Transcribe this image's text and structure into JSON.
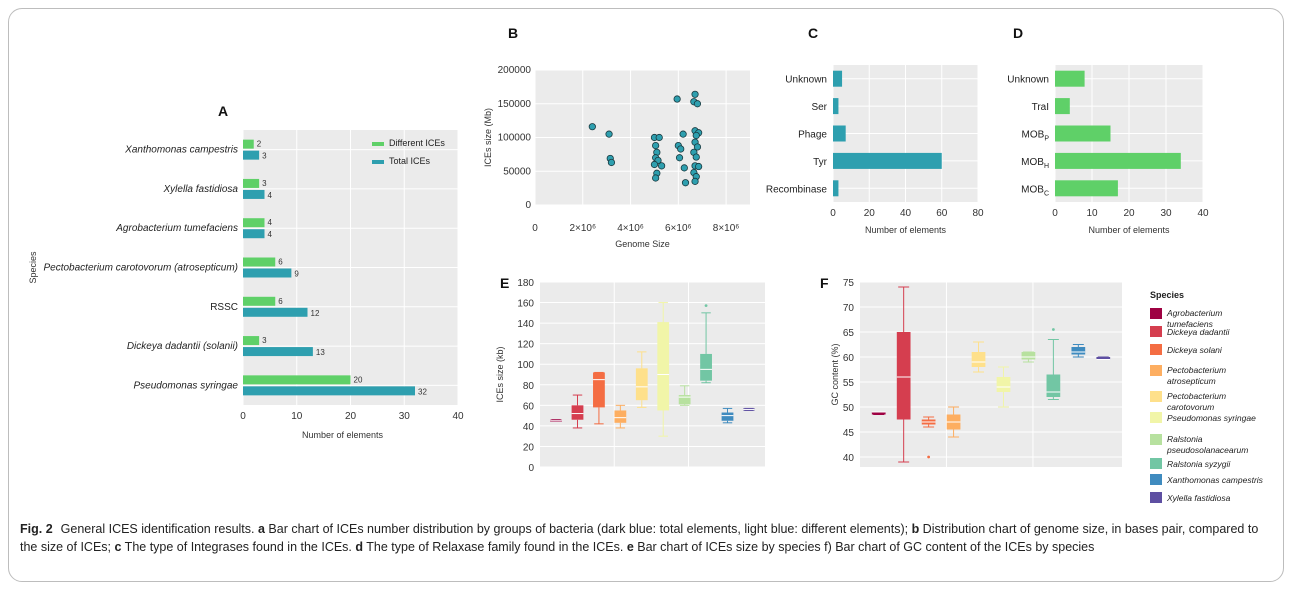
{
  "caption": {
    "label": "Fig. 2",
    "parts": [
      {
        "text": "General ICES identification results. "
      },
      {
        "bold": "a"
      },
      {
        "text": " Bar chart of ICEs number distribution by groups of bacteria (dark blue: total elements, light blue: different elements); "
      },
      {
        "bold": "b"
      },
      {
        "text": " Distribution chart of genome size, in bases pair, compared to the size of ICEs; "
      },
      {
        "bold": "c"
      },
      {
        "text": " The type of Integrases found in the ICEs. "
      },
      {
        "bold": "d"
      },
      {
        "text": " The type of Relaxase family found in the ICEs. "
      },
      {
        "bold": "e"
      },
      {
        "text": " Bar chart of ICEs size by species f) Bar chart of GC content of the ICEs by species"
      }
    ]
  },
  "colors": {
    "panel_bg": "#ebebeb",
    "grid": "#ffffff",
    "green": "#5fd068",
    "teal": "#2e9faf",
    "scatter_fill": "#2e9faf",
    "scatter_stroke": "#1a3a40"
  },
  "species_legend": {
    "title": "Species",
    "items": [
      {
        "name": "Agrobacterium tumefaciens",
        "color": "#9e0142"
      },
      {
        "name": "Dickeya dadantii",
        "color": "#d53e4f"
      },
      {
        "name": "Dickeya solani",
        "color": "#f46d43"
      },
      {
        "name": "Pectobacterium atrosepticum",
        "color": "#fdae61"
      },
      {
        "name": "Pectobacterium carotovorum",
        "color": "#fee08b"
      },
      {
        "name": "Pseudomonas syringae",
        "color": "#f1f5a8"
      },
      {
        "name": "Ralstonia pseudosolanacearum",
        "color": "#b7e19f"
      },
      {
        "name": "Ralstonia syzygii",
        "color": "#72c6a4"
      },
      {
        "name": "Xanthomonas campestris",
        "color": "#3f8bbf"
      },
      {
        "name": "Xylella fastidiosa",
        "color": "#5e4fa2"
      }
    ]
  },
  "chart_data": [
    {
      "panel": "A",
      "type": "bar",
      "orientation": "horizontal",
      "categories": [
        "Xanthomonas campestris",
        "Xylella fastidiosa",
        "Agrobacterium tumefaciens",
        "Pectobacterium carotovorum (atrosepticum)",
        "RSSC",
        "Dickeya dadantii (solanii)",
        "Pseudomonas syringae"
      ],
      "category_italic": [
        true,
        true,
        true,
        true,
        false,
        true,
        true
      ],
      "series": [
        {
          "name": "Different ICEs",
          "values": [
            2,
            3,
            4,
            6,
            6,
            3,
            20
          ]
        },
        {
          "name": "Total ICEs",
          "values": [
            3,
            4,
            4,
            9,
            12,
            13,
            32
          ]
        }
      ],
      "xlabel": "Number of elements",
      "ylabel": "Species",
      "xlim": [
        0,
        40
      ],
      "xticks": [
        0,
        10,
        20,
        30,
        40
      ],
      "legend": "top-right",
      "grid": true
    },
    {
      "panel": "B",
      "type": "scatter",
      "xlabel": "Genome Size",
      "ylabel": "ICEs size (Mb)",
      "xlim": [
        0,
        9000000
      ],
      "ylim": [
        0,
        200000
      ],
      "xticks": [
        0,
        2000000,
        4000000,
        6000000,
        8000000
      ],
      "xtick_labels": [
        "0",
        "2×10⁶",
        "4×10⁶",
        "6×10⁶",
        "8×10⁶"
      ],
      "yticks": [
        0,
        50000,
        100000,
        150000,
        200000
      ],
      "points": [
        [
          2400000,
          116000
        ],
        [
          3100000,
          105000
        ],
        [
          3150000,
          69000
        ],
        [
          3200000,
          63000
        ],
        [
          5000000,
          100000
        ],
        [
          5050000,
          88000
        ],
        [
          5100000,
          78000
        ],
        [
          5050000,
          70000
        ],
        [
          5150000,
          66000
        ],
        [
          5000000,
          60000
        ],
        [
          5100000,
          47000
        ],
        [
          5050000,
          40000
        ],
        [
          5200000,
          100000
        ],
        [
          5300000,
          58000
        ],
        [
          5950000,
          157000
        ],
        [
          6000000,
          88000
        ],
        [
          6100000,
          83000
        ],
        [
          6050000,
          70000
        ],
        [
          6200000,
          105000
        ],
        [
          6250000,
          55000
        ],
        [
          6300000,
          33000
        ],
        [
          6700000,
          164000
        ],
        [
          6650000,
          153000
        ],
        [
          6800000,
          150000
        ],
        [
          6700000,
          110000
        ],
        [
          6850000,
          107000
        ],
        [
          6750000,
          103000
        ],
        [
          6700000,
          93000
        ],
        [
          6800000,
          86000
        ],
        [
          6650000,
          78000
        ],
        [
          6750000,
          71000
        ],
        [
          6700000,
          58000
        ],
        [
          6850000,
          57000
        ],
        [
          6650000,
          48000
        ],
        [
          6750000,
          42000
        ],
        [
          6700000,
          35000
        ]
      ],
      "grid": true
    },
    {
      "panel": "C",
      "type": "bar",
      "orientation": "horizontal",
      "categories": [
        "Unknown",
        "Ser",
        "Phage",
        "Tyr",
        "Recombinase"
      ],
      "values": [
        5,
        3,
        7,
        60,
        3
      ],
      "xlabel": "Number of elements",
      "xlim": [
        0,
        80
      ],
      "xticks": [
        0,
        20,
        40,
        60,
        80
      ],
      "grid": true
    },
    {
      "panel": "D",
      "type": "bar",
      "orientation": "horizontal",
      "categories": [
        "Unknown",
        "TraI",
        "MOBP",
        "MOBH",
        "MOBC"
      ],
      "values": [
        8,
        4,
        15,
        34,
        17
      ],
      "xlabel": "Number of elements",
      "xlim": [
        0,
        40
      ],
      "xticks": [
        0,
        10,
        20,
        30,
        40
      ],
      "grid": true
    },
    {
      "panel": "E",
      "type": "box",
      "ylabel": "ICEs size (kb)",
      "ylim": [
        0,
        180
      ],
      "yticks": [
        0,
        20,
        40,
        60,
        80,
        100,
        120,
        140,
        160,
        180
      ],
      "boxes": [
        {
          "species": "Agrobacterium tumefaciens",
          "min": 45,
          "q1": 45,
          "median": 45,
          "q3": 46,
          "max": 46
        },
        {
          "species": "Dickeya dadantii",
          "min": 38,
          "q1": 46,
          "median": 52,
          "q3": 60,
          "max": 70
        },
        {
          "species": "Dickeya solani",
          "min": 42,
          "q1": 58,
          "median": 85,
          "q3": 92,
          "max": 92
        },
        {
          "species": "Pectobacterium atrosepticum",
          "min": 38,
          "q1": 43,
          "median": 48,
          "q3": 55,
          "max": 60
        },
        {
          "species": "Pectobacterium carotovorum",
          "min": 58,
          "q1": 65,
          "median": 78,
          "q3": 96,
          "max": 112
        },
        {
          "species": "Pseudomonas syringae",
          "min": 30,
          "q1": 55,
          "median": 90,
          "q3": 141,
          "max": 160
        },
        {
          "species": "Ralstonia pseudosolanacearum",
          "min": 60,
          "q1": 61,
          "median": 68,
          "q3": 70,
          "max": 79
        },
        {
          "species": "Ralstonia syzygii",
          "min": 82,
          "q1": 84,
          "median": 95,
          "q3": 110,
          "max": 150,
          "outliers": [
            157
          ]
        },
        {
          "species": "Xanthomonas campestris",
          "min": 43,
          "q1": 45,
          "median": 50,
          "q3": 53,
          "max": 57
        },
        {
          "species": "Xylella fastidiosa",
          "min": 55,
          "q1": 56,
          "median": 56,
          "q3": 57,
          "max": 57
        }
      ],
      "grid": true
    },
    {
      "panel": "F",
      "type": "box",
      "ylabel": "GC content (%)",
      "ylim": [
        38,
        75
      ],
      "yticks": [
        40,
        45,
        50,
        55,
        60,
        65,
        70,
        75
      ],
      "boxes": [
        {
          "species": "Agrobacterium tumefaciens",
          "min": 48.5,
          "q1": 48.5,
          "median": 49,
          "q3": 49,
          "max": 49
        },
        {
          "species": "Dickeya dadantii",
          "min": 39,
          "q1": 47.5,
          "median": 56,
          "q3": 65,
          "max": 74
        },
        {
          "species": "Dickeya solani",
          "min": 46,
          "q1": 46.5,
          "median": 47,
          "q3": 47.5,
          "max": 48,
          "outliers": [
            40
          ]
        },
        {
          "species": "Pectobacterium atrosepticum",
          "min": 44,
          "q1": 45.5,
          "median": 47,
          "q3": 48.5,
          "max": 50
        },
        {
          "species": "Pectobacterium carotovorum",
          "min": 57,
          "q1": 58,
          "median": 59,
          "q3": 61,
          "max": 63
        },
        {
          "species": "Pseudomonas syringae",
          "min": 50,
          "q1": 53,
          "median": 54,
          "q3": 56,
          "max": 58
        },
        {
          "species": "Ralstonia pseudosolanacearum",
          "min": 59,
          "q1": 59.5,
          "median": 60,
          "q3": 61,
          "max": 61
        },
        {
          "species": "Ralstonia syzygii",
          "min": 51.5,
          "q1": 52,
          "median": 53,
          "q3": 56.5,
          "max": 63.5,
          "outliers": [
            65.5
          ]
        },
        {
          "species": "Xanthomonas campestris",
          "min": 60,
          "q1": 60.5,
          "median": 61,
          "q3": 62,
          "max": 62.5
        },
        {
          "species": "Xylella fastidiosa",
          "min": 59.5,
          "q1": 59.5,
          "median": 59.5,
          "q3": 60,
          "max": 60
        }
      ],
      "grid": true
    }
  ]
}
